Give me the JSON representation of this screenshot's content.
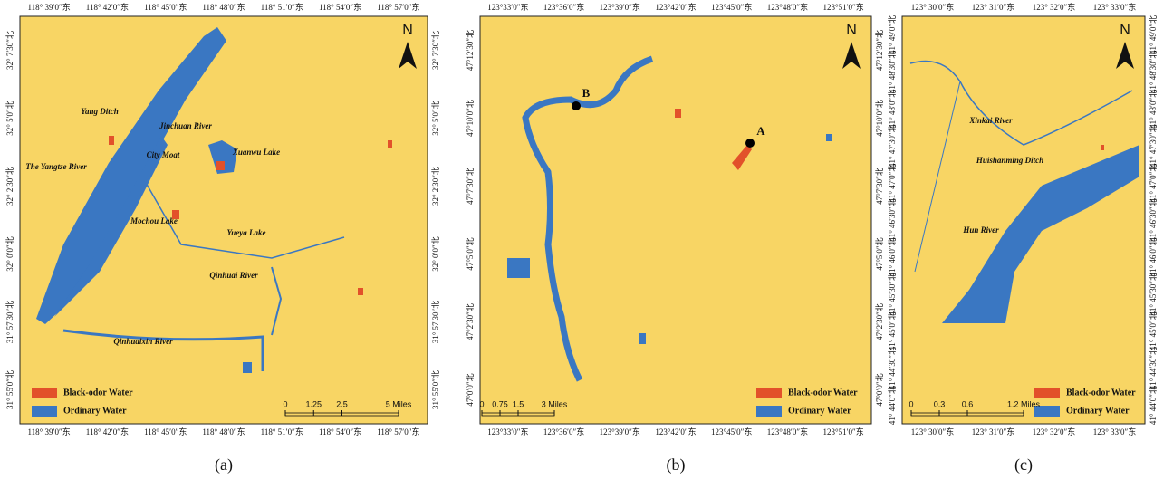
{
  "panels": [
    {
      "caption": "(a)",
      "north": "N",
      "lon_ticks": [
        "118° 39′0″东",
        "118° 42′0″东",
        "118° 45′0″东",
        "118° 48′0″东",
        "118° 51′0″东",
        "118° 54′0″东",
        "118° 57′0″东"
      ],
      "lat_ticks": [
        "32° 7′30″北",
        "32° 5′0″北",
        "32° 2′30″北",
        "32° 0′0″北",
        "31° 57′30″北",
        "31° 55′0″北"
      ],
      "places": [
        "Yang Ditch",
        "Jinchuan River",
        "The Yangtze River",
        "City Moat",
        "Xuanwu Lake",
        "Mochou Lake",
        "Yueya Lake",
        "Qinhuai River",
        "Qinhuaixin River"
      ],
      "legend": [
        "Black-odor Water",
        "Ordinary Water"
      ],
      "scale": [
        "0",
        "1.25",
        "2.5",
        "5 Miles"
      ]
    },
    {
      "caption": "(b)",
      "north": "N",
      "lon_ticks": [
        "123°33′0″东",
        "123°36′0″东",
        "123°39′0″东",
        "123°42′0″东",
        "123°45′0″东",
        "123°48′0″东",
        "123°51′0″东"
      ],
      "lat_ticks": [
        "47°12′30″北",
        "47°10′0″北",
        "47°7′30″北",
        "47°5′0″北",
        "47°2′30″北",
        "47°0′0″北"
      ],
      "places": [
        "B",
        "A"
      ],
      "legend": [
        "Black-odor Water",
        "Ordinary Water"
      ],
      "scale": [
        "0",
        "0.75",
        "1.5",
        "3 Miles"
      ]
    },
    {
      "caption": "(c)",
      "north": "N",
      "lon_ticks": [
        "123° 30′0″东",
        "123° 31′0″东",
        "123° 32′0″东",
        "123° 33′0″东"
      ],
      "lat_ticks": [
        "41° 49′0″北",
        "41° 48′30″北",
        "41° 48′0″北",
        "41° 47′30″北",
        "41° 47′0″北",
        "41° 46′30″北",
        "41° 46′0″北",
        "41° 45′30″北",
        "41° 45′0″北",
        "41° 44′30″北",
        "41° 44′0″北"
      ],
      "places": [
        "Xinkai River",
        "Huishanming Ditch",
        "Hun River"
      ],
      "legend": [
        "Black-odor Water",
        "Ordinary Water"
      ],
      "scale": [
        "0",
        "0.3",
        "0.6",
        "1.2 Miles"
      ]
    }
  ]
}
